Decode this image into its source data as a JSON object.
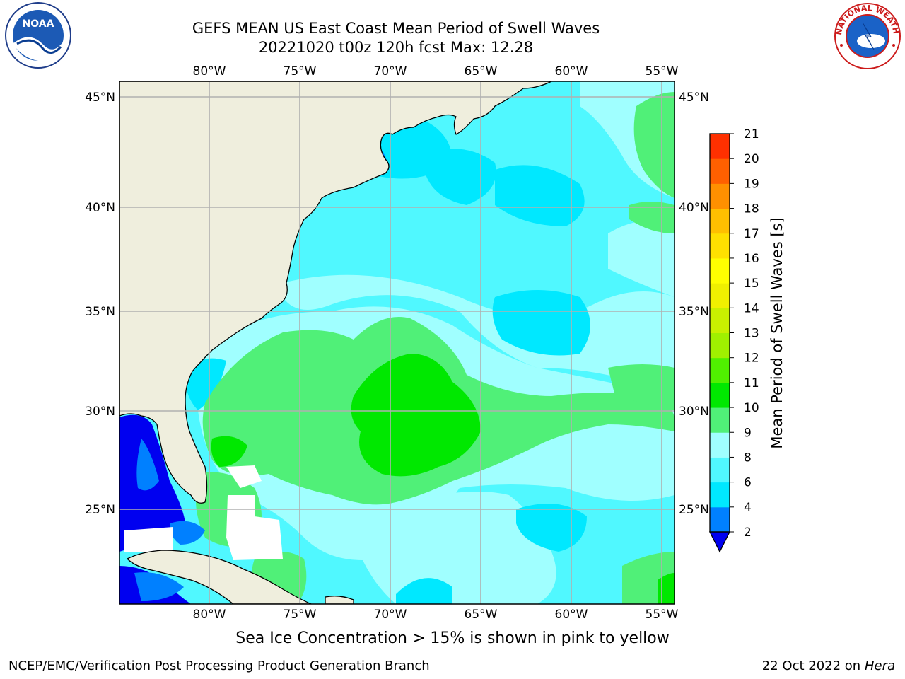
{
  "header": {
    "title_line1": "GEFS MEAN US East Coast Mean Period of Swell Waves",
    "title_line2": "20221020 t00z 120h fcst   Max: 12.28"
  },
  "logos": {
    "left": {
      "icon": "noaa-logo-icon",
      "text": "NOAA"
    },
    "right": {
      "icon": "nws-logo-icon",
      "ring_text": "NATIONAL WEATHER SERVICE"
    }
  },
  "map": {
    "lon_labels": [
      "80°W",
      "75°W",
      "70°W",
      "65°W",
      "60°W",
      "55°W"
    ],
    "lat_labels": [
      "45°N",
      "40°N",
      "35°N",
      "30°N",
      "25°N"
    ],
    "colors": {
      "land": "#efeedd",
      "grid": "#b0b0b0",
      "coast": "#000000",
      "missing": "#ffffff"
    }
  },
  "colorbar": {
    "label": "Mean Period of Swell Waves [s]",
    "ticks": [
      "2",
      "4",
      "6",
      "8",
      "9",
      "10",
      "11",
      "12",
      "13",
      "14",
      "15",
      "16",
      "17",
      "18",
      "19",
      "20",
      "21"
    ],
    "colors": [
      "#0080ff",
      "#00e8ff",
      "#50f8ff",
      "#a0ffff",
      "#50f078",
      "#00e800",
      "#50f000",
      "#a0f000",
      "#c8f000",
      "#f0f000",
      "#ffff00",
      "#ffe000",
      "#ffc000",
      "#ff9000",
      "#ff6000",
      "#ff3000",
      "#ff0000"
    ],
    "under_color": "#0000f0"
  },
  "notes": {
    "ice": "Sea Ice Concentration > 15% is shown in pink to yellow"
  },
  "footer": {
    "left": "NCEP/EMC/Verification Post Processing Product Generation Branch",
    "right_date": "22 Oct 2022 on ",
    "right_machine": "Hera"
  }
}
